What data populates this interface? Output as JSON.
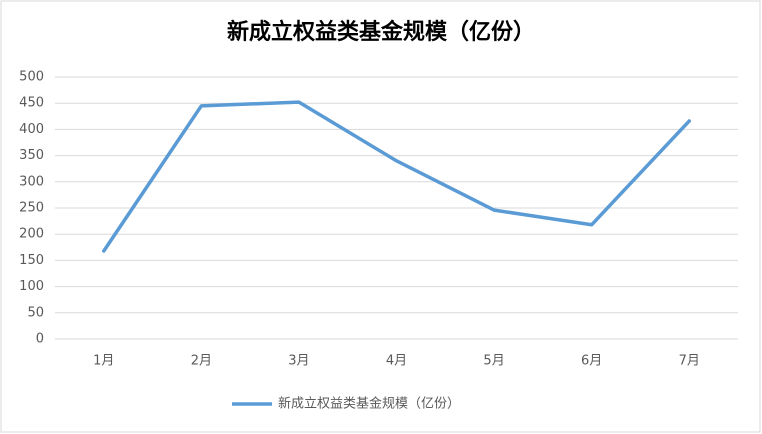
{
  "chart_data": {
    "type": "line",
    "title": "新成立权益类基金规模（亿份）",
    "categories": [
      "1月",
      "2月",
      "3月",
      "4月",
      "5月",
      "6月",
      "7月"
    ],
    "series": [
      {
        "name": "新成立权益类基金规模（亿份）",
        "color": "#5b9bd5",
        "values": [
          168,
          445,
          452,
          340,
          246,
          218,
          416
        ]
      }
    ],
    "ylim": [
      0,
      500
    ],
    "yticks": [
      0,
      50,
      100,
      150,
      200,
      250,
      300,
      350,
      400,
      450,
      500
    ],
    "grid": true,
    "legend": "bottom"
  }
}
